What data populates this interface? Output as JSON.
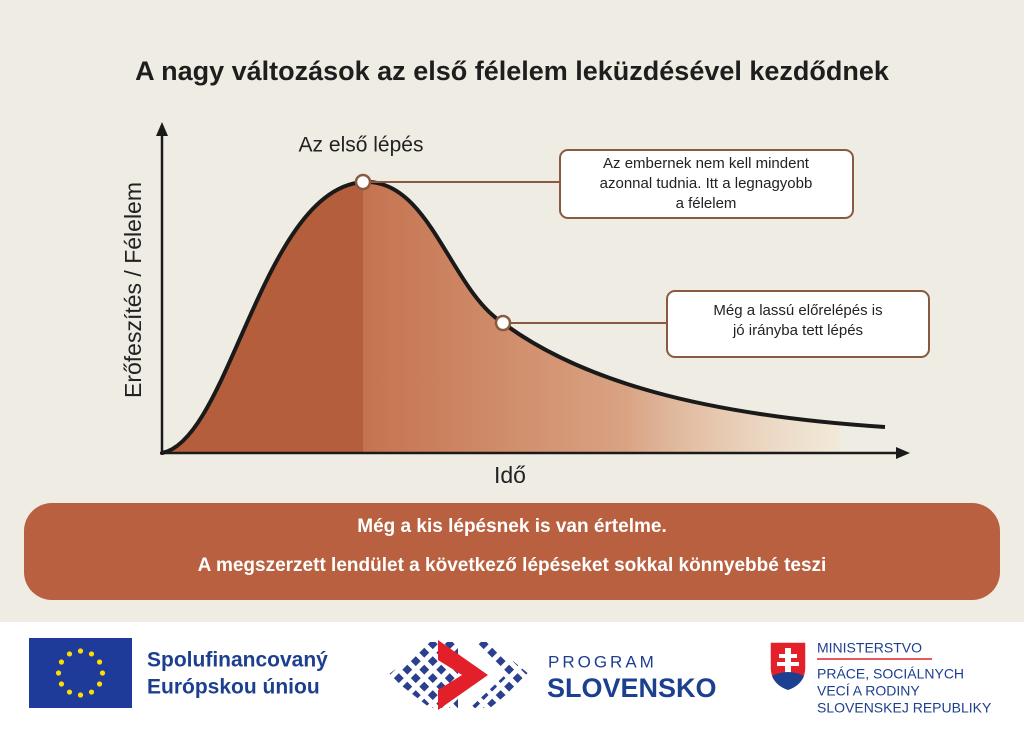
{
  "title": "A nagy változások az első félelem leküzdésével kezdődnek",
  "diagram": {
    "y_axis_label": "Erőfeszítés / Félelem",
    "x_axis_label": "Idő",
    "peak_label": "Az első lépés",
    "callouts": [
      {
        "lines": [
          "Az embernek nem kell mindent",
          "azonnal tudnia. Itt a legnagyobb",
          "a félelem"
        ]
      },
      {
        "lines": [
          "Még a lassú előrelépés is",
          "jó irányba tett lépés"
        ]
      }
    ]
  },
  "banner": {
    "lines": [
      "Még a kis lépésnek is van értelme.",
      "A megszerzett lendület a következő lépéseket sokkal könnyebbé teszi"
    ]
  },
  "footer": {
    "eu": {
      "lines": [
        "Spolufinancovaný",
        "Európskou úniou"
      ]
    },
    "program": {
      "lines": [
        "PROGRAM",
        "SLOVENSKO"
      ]
    },
    "ministry": {
      "lines": [
        "MINISTERSTVO",
        "PRÁCE, SOCIÁLNYCH",
        "VECÍ A RODINY",
        "SLOVENSKEJ REPUBLIKY"
      ]
    }
  }
}
